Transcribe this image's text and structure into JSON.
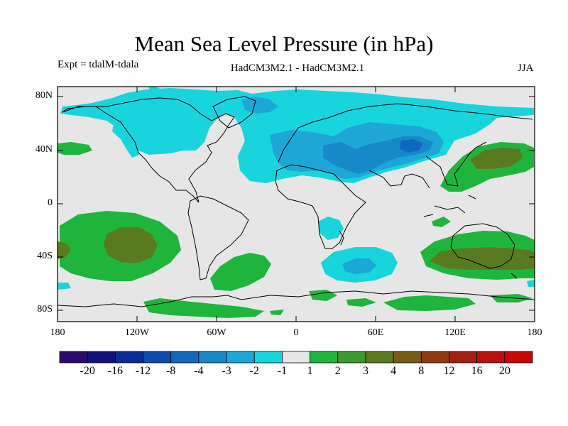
{
  "title": "Mean Sea Level Pressure (in hPa)",
  "experiment": "Expt = tdalM-tdala",
  "model": "HadCM3M2.1 - HadCM3M2.1",
  "season": "JJA",
  "y_ticks": [
    "80N",
    "40N",
    "0",
    "40S",
    "80S"
  ],
  "x_ticks": [
    "180",
    "120W",
    "60W",
    "0",
    "60E",
    "120E",
    "180"
  ],
  "colorbar": {
    "colors": [
      "#2c0a6e",
      "#12107d",
      "#0a2c98",
      "#0a4cae",
      "#0f68bd",
      "#1789c8",
      "#1ca7d6",
      "#18d4dc",
      "#e6e6e6",
      "#1fb53d",
      "#3d9a2c",
      "#5a7a1f",
      "#7a5a17",
      "#8f3b12",
      "#a3200e",
      "#b8100c",
      "#c80808"
    ],
    "labels": [
      "-20",
      "-16",
      "-12",
      "-8",
      "-4",
      "-3",
      "-2",
      "-1",
      "1",
      "2",
      "3",
      "4",
      "8",
      "12",
      "16",
      "20"
    ]
  },
  "palette": {
    "background": "#e6e6e6",
    "neg1": "#18d4dc",
    "neg2": "#1ca7d6",
    "neg3": "#1789c8",
    "pos1": "#1fb53d",
    "pos2": "#3d9a2c",
    "pos3": "#5a7a1f"
  }
}
